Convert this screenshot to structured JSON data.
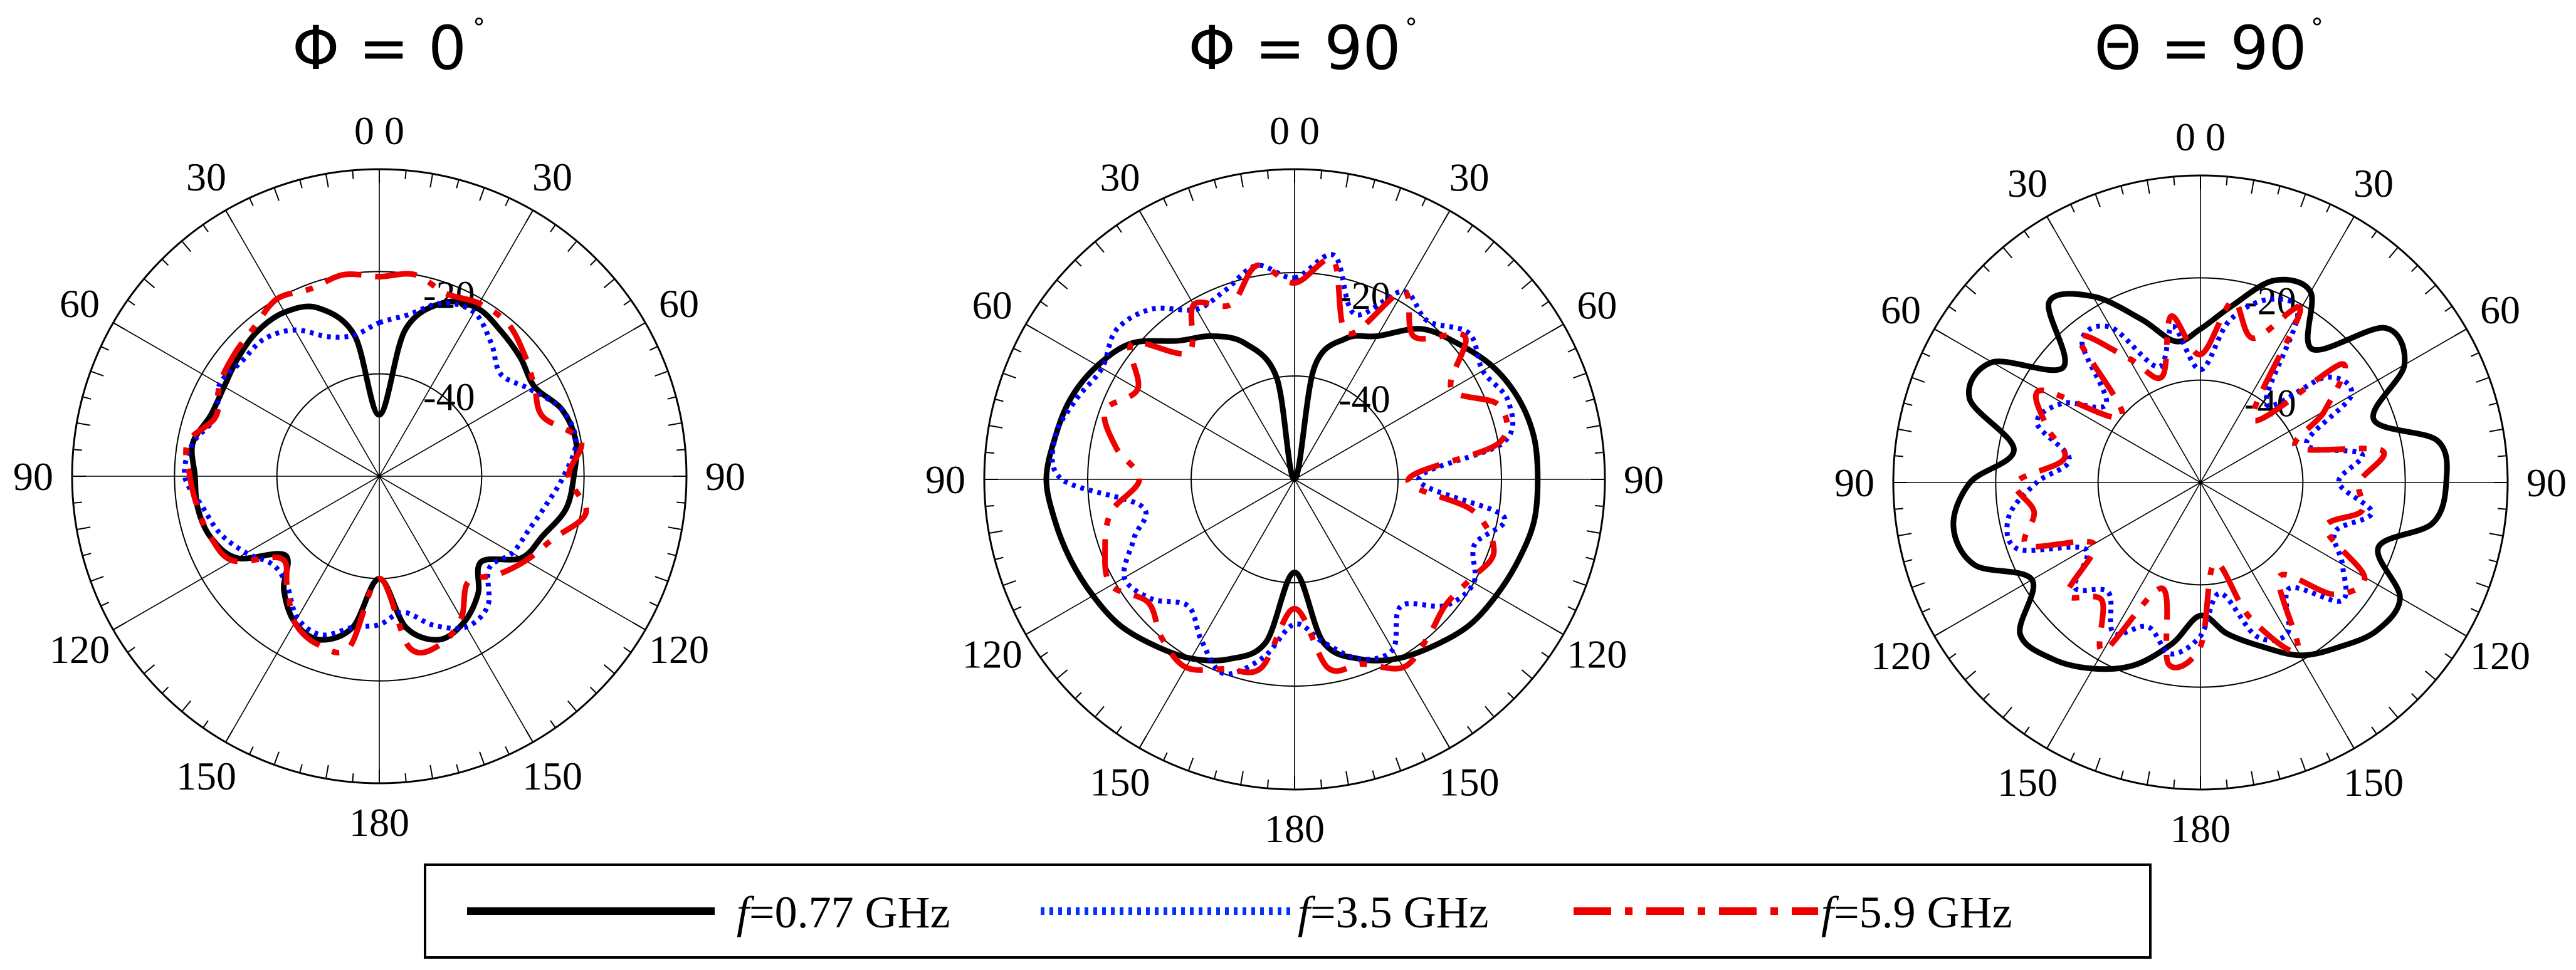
{
  "chart_data": [
    {
      "type": "polar",
      "title": "Φ = 0",
      "title_degree": "°",
      "radial_range_dB": [
        -60,
        0
      ],
      "ring_labels": [
        "-20",
        "-40"
      ],
      "ring_values_dB": [
        -20,
        -40
      ],
      "angle_labels": [
        "0 0",
        "30",
        "30",
        "60",
        "60",
        "90",
        "90",
        "120",
        "120",
        "150",
        "150",
        "180"
      ],
      "grid": true,
      "angular_step_deg": 30,
      "series": [
        {
          "name": "f=0.77 GHz",
          "color": "#000000",
          "style": "solid",
          "theta_deg": [
            0,
            10,
            20,
            30,
            40,
            50,
            60,
            70,
            80,
            90,
            100,
            110,
            120,
            130,
            140,
            150,
            160,
            170,
            180,
            190,
            200,
            210,
            220,
            230,
            240,
            250,
            260,
            270,
            280,
            290,
            300,
            310,
            320,
            330,
            340,
            350
          ],
          "gain_dB": [
            -48,
            -31,
            -24,
            -22,
            -23,
            -24,
            -25,
            -22,
            -21,
            -22,
            -23,
            -26,
            -28,
            -34,
            -30,
            -27,
            -26,
            -30,
            -40,
            -30,
            -26,
            -27,
            -31,
            -36,
            -28,
            -25,
            -24,
            -24,
            -23,
            -25,
            -25,
            -24,
            -23,
            -23,
            -25,
            -32
          ]
        },
        {
          "name": "f=3.5 GHz",
          "color": "#0000ff",
          "style": "dotted",
          "theta_deg": [
            0,
            10,
            20,
            30,
            40,
            50,
            60,
            70,
            80,
            90,
            100,
            110,
            120,
            130,
            140,
            150,
            160,
            170,
            180,
            190,
            200,
            210,
            220,
            230,
            240,
            250,
            260,
            270,
            280,
            290,
            300,
            310,
            320,
            330,
            340,
            350
          ],
          "gain_dB": [
            -30,
            -28,
            -24,
            -23,
            -26,
            -29,
            -26,
            -22,
            -21,
            -24,
            -27,
            -29,
            -30,
            -32,
            -27,
            -26,
            -29,
            -33,
            -31,
            -30,
            -27,
            -28,
            -32,
            -33,
            -30,
            -27,
            -25,
            -22,
            -23,
            -26,
            -24,
            -25,
            -25,
            -27,
            -31,
            -32
          ]
        },
        {
          "name": "f=5.9 GHz",
          "color": "#ee0000",
          "style": "dash-dot",
          "theta_deg": [
            0,
            10,
            20,
            30,
            40,
            50,
            60,
            70,
            80,
            90,
            100,
            110,
            120,
            130,
            140,
            150,
            160,
            170,
            180,
            190,
            200,
            210,
            220,
            230,
            240,
            250,
            260,
            270,
            280,
            290,
            300,
            310,
            320,
            330,
            340,
            350
          ],
          "gain_dB": [
            -21,
            -20,
            -22,
            -21,
            -21,
            -23,
            -25,
            -26,
            -20,
            -23,
            -19,
            -24,
            -27,
            -30,
            -33,
            -28,
            -25,
            -26,
            -40,
            -26,
            -25,
            -27,
            -32,
            -35,
            -27,
            -25,
            -24,
            -23,
            -22,
            -26,
            -24,
            -23,
            -22,
            -20,
            -21,
            -20
          ]
        }
      ]
    },
    {
      "type": "polar",
      "title": "Φ = 90",
      "title_degree": "°",
      "radial_range_dB": [
        -60,
        0
      ],
      "ring_labels": [
        "-20",
        "-40"
      ],
      "ring_values_dB": [
        -20,
        -40
      ],
      "angle_labels": [
        "0 0",
        "30",
        "30",
        "60",
        "60",
        "90",
        "90",
        "120",
        "120",
        "150",
        "150",
        "180"
      ],
      "grid": true,
      "angular_step_deg": 30,
      "series": [
        {
          "name": "f=0.77 GHz",
          "color": "#000000",
          "style": "solid",
          "theta_deg": [
            0,
            10,
            20,
            30,
            40,
            50,
            60,
            70,
            80,
            90,
            100,
            110,
            120,
            130,
            140,
            150,
            160,
            170,
            180,
            190,
            200,
            210,
            220,
            230,
            240,
            250,
            260,
            270,
            280,
            290,
            300,
            310,
            320,
            330,
            340,
            350
          ],
          "gain_dB": [
            -60,
            -38,
            -31,
            -28,
            -22,
            -19,
            -16,
            -14,
            -13,
            -13,
            -13,
            -14,
            -15,
            -16,
            -18,
            -20,
            -23,
            -28,
            -42,
            -28,
            -23,
            -20,
            -18,
            -16,
            -15,
            -14,
            -13,
            -12,
            -13,
            -14,
            -16,
            -19,
            -25,
            -28,
            -32,
            -40
          ]
        },
        {
          "name": "f=3.5 GHz",
          "color": "#0000ff",
          "style": "dotted",
          "theta_deg": [
            0,
            10,
            20,
            30,
            40,
            50,
            60,
            70,
            80,
            90,
            100,
            110,
            120,
            130,
            140,
            150,
            160,
            170,
            180,
            190,
            200,
            210,
            220,
            230,
            240,
            250,
            260,
            270,
            280,
            290,
            300,
            310,
            320,
            330,
            340,
            350
          ],
          "gain_dB": [
            -21,
            -16,
            -26,
            -18,
            -20,
            -16,
            -18,
            -16,
            -19,
            -36,
            -19,
            -23,
            -20,
            -22,
            -28,
            -22,
            -23,
            -28,
            -32,
            -25,
            -20,
            -24,
            -28,
            -24,
            -22,
            -27,
            -30,
            -15,
            -13,
            -15,
            -17,
            -15,
            -17,
            -22,
            -21,
            -18
          ]
        },
        {
          "name": "f=5.9 GHz",
          "color": "#ee0000",
          "style": "dash-dot",
          "theta_deg": [
            0,
            10,
            20,
            30,
            40,
            50,
            60,
            70,
            80,
            90,
            100,
            110,
            120,
            130,
            140,
            150,
            160,
            170,
            180,
            190,
            200,
            210,
            220,
            230,
            240,
            250,
            260,
            270,
            280,
            290,
            300,
            310,
            320,
            330,
            340,
            350
          ],
          "gain_dB": [
            -22,
            -17,
            -30,
            -18,
            -24,
            -17,
            -25,
            -18,
            -20,
            -38,
            -25,
            -19,
            -21,
            -22,
            -20,
            -18,
            -22,
            -23,
            -35,
            -23,
            -21,
            -18,
            -20,
            -23,
            -19,
            -21,
            -24,
            -30,
            -25,
            -21,
            -25,
            -19,
            -28,
            -21,
            -24,
            -18
          ]
        }
      ]
    },
    {
      "type": "polar",
      "title": "Θ = 90",
      "title_degree": "°",
      "radial_range_dB": [
        -60,
        0
      ],
      "ring_labels": [
        "-20",
        "-40"
      ],
      "ring_values_dB": [
        -20,
        -40
      ],
      "angle_labels": [
        "0 0",
        "30",
        "30",
        "60",
        "60",
        "90",
        "90",
        "120",
        "120",
        "150",
        "150",
        "180"
      ],
      "grid": true,
      "angular_step_deg": 30,
      "series": [
        {
          "name": "f=0.77 GHz",
          "color": "#000000",
          "style": "solid",
          "theta_deg": [
            0,
            10,
            20,
            30,
            40,
            50,
            60,
            70,
            80,
            90,
            100,
            110,
            120,
            130,
            140,
            150,
            160,
            170,
            180,
            190,
            200,
            210,
            220,
            230,
            240,
            250,
            260,
            270,
            280,
            290,
            300,
            310,
            320,
            330,
            340,
            350
          ],
          "gain_dB": [
            -30,
            -25,
            -18,
            -17,
            -26,
            -13,
            -14,
            -24,
            -13,
            -12,
            -14,
            -23,
            -15,
            -15,
            -18,
            -21,
            -26,
            -30,
            -34,
            -28,
            -22,
            -18,
            -15,
            -14,
            -22,
            -13,
            -11,
            -15,
            -23,
            -12,
            -13,
            -25,
            -14,
            -18,
            -26,
            -32
          ]
        },
        {
          "name": "f=3.5 GHz",
          "color": "#0000ff",
          "style": "dotted",
          "theta_deg": [
            0,
            10,
            20,
            30,
            40,
            50,
            60,
            70,
            80,
            90,
            100,
            110,
            120,
            130,
            140,
            150,
            160,
            170,
            180,
            190,
            200,
            210,
            220,
            230,
            240,
            250,
            260,
            270,
            280,
            290,
            300,
            310,
            320,
            330,
            340,
            350
          ],
          "gain_dB": [
            -38,
            -28,
            -22,
            -22,
            -40,
            -28,
            -26,
            -38,
            -28,
            -33,
            -26,
            -32,
            -28,
            -24,
            -33,
            -26,
            -28,
            -38,
            -30,
            -26,
            -30,
            -26,
            -32,
            -28,
            -34,
            -22,
            -22,
            -28,
            -34,
            -26,
            -29,
            -36,
            -24,
            -25,
            -36,
            -29
          ]
        },
        {
          "name": "f=5.9 GHz",
          "color": "#ee0000",
          "style": "dash-dot",
          "theta_deg": [
            0,
            10,
            20,
            30,
            40,
            50,
            60,
            70,
            80,
            90,
            100,
            110,
            120,
            130,
            140,
            150,
            160,
            170,
            180,
            190,
            200,
            210,
            220,
            230,
            240,
            250,
            260,
            270,
            280,
            290,
            300,
            310,
            320,
            330,
            340,
            350
          ],
          "gain_dB": [
            -35,
            -24,
            -30,
            -21,
            -44,
            -24,
            -32,
            -40,
            -24,
            -29,
            -28,
            -34,
            -23,
            -26,
            -36,
            -22,
            -32,
            -44,
            -28,
            -24,
            -38,
            -22,
            -30,
            -26,
            -36,
            -24,
            -27,
            -24,
            -33,
            -28,
            -24,
            -40,
            -23,
            -32,
            -38,
            -27
          ]
        }
      ]
    }
  ],
  "legend": {
    "items": [
      {
        "prefix": "f",
        "label": "=0.77 GHz",
        "color": "#000000",
        "style": "solid"
      },
      {
        "prefix": "f",
        "label": "=3.5 GHz",
        "color": "#0033ff",
        "style": "dotted"
      },
      {
        "prefix": "f",
        "label": "=5.9 GHz",
        "color": "#ee0000",
        "style": "dash-dot"
      }
    ]
  }
}
